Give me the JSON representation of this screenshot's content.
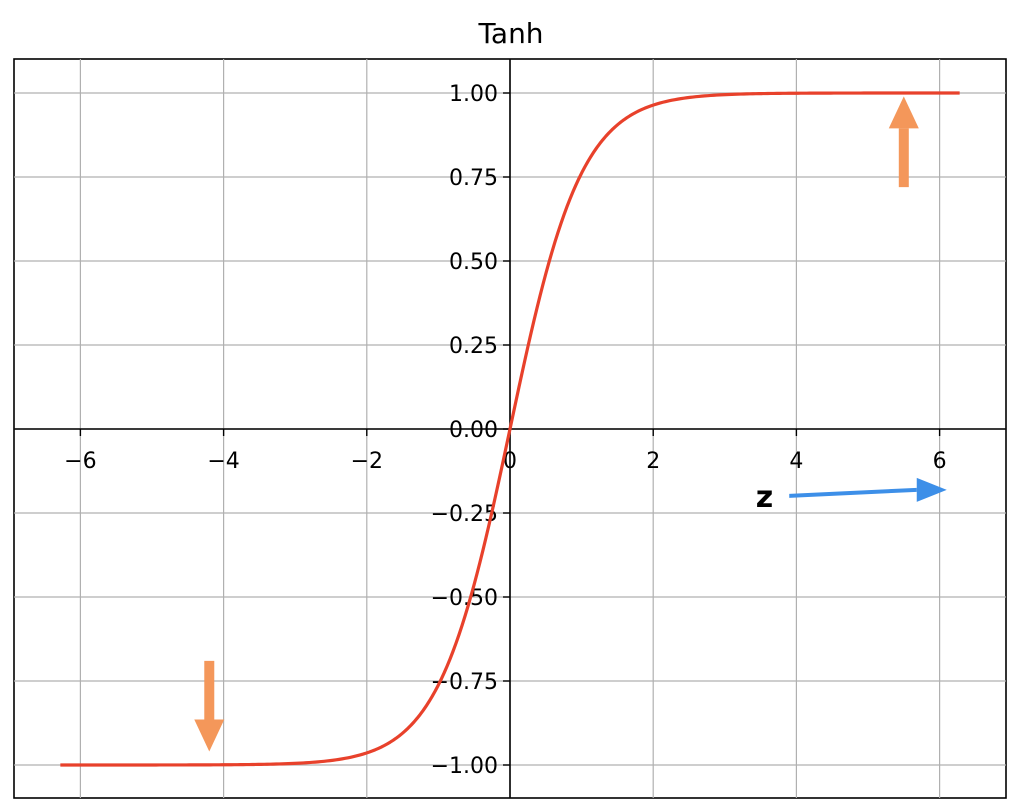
{
  "chart_data": {
    "type": "line",
    "title": "Tanh",
    "xlabel": "",
    "ylabel": "",
    "xlim": [
      -6.9,
      7.0
    ],
    "ylim": [
      -1.1,
      1.1
    ],
    "grid": true,
    "spines": "centered-at-origin",
    "x_ticks": [
      -6,
      -4,
      -2,
      0,
      2,
      4,
      6
    ],
    "x_tick_labels": [
      "−6",
      "−4",
      "−2",
      "0",
      "2",
      "4",
      "6"
    ],
    "y_ticks": [
      1.0,
      0.75,
      0.5,
      0.25,
      0.0,
      -0.25,
      -0.5,
      -0.75,
      -1.0
    ],
    "y_tick_labels": [
      "1.00",
      "0.75",
      "0.50",
      "0.25",
      "0.00",
      "−0.25",
      "−0.50",
      "−0.75",
      "−1.00"
    ],
    "series": [
      {
        "function": "tanh",
        "color": "#e8412b",
        "x": [
          -6.28,
          -5.0,
          -4.0,
          -3.0,
          -2.5,
          -2.0,
          -1.5,
          -1.0,
          -0.75,
          -0.5,
          -0.25,
          0.0,
          0.25,
          0.5,
          0.75,
          1.0,
          1.5,
          2.0,
          2.5,
          3.0,
          4.0,
          5.0,
          6.28
        ],
        "y": [
          -1.0,
          -0.9999,
          -0.9993,
          -0.9951,
          -0.9866,
          -0.964,
          -0.9051,
          -0.7616,
          -0.6351,
          -0.4621,
          -0.2449,
          0.0,
          0.2449,
          0.4621,
          0.6351,
          0.7616,
          0.9051,
          0.964,
          0.9866,
          0.9951,
          0.9993,
          0.9999,
          1.0
        ]
      }
    ],
    "annotations": [
      {
        "name": "upper-saturation-arrow",
        "direction": "up",
        "x": 5.5,
        "y_from": 0.72,
        "y_to": 0.99,
        "color": "#f4975a"
      },
      {
        "name": "lower-saturation-arrow",
        "direction": "down",
        "x": -4.2,
        "y_from": -0.69,
        "y_to": -0.96,
        "color": "#f4975a"
      },
      {
        "name": "z-axis-arrow",
        "label": "z",
        "direction": "right",
        "x_from": 3.9,
        "x_to": 6.1,
        "y": -0.19,
        "color": "#3d8fe8"
      }
    ]
  },
  "colors": {
    "curve": "#e8412b",
    "grid": "#b0b0b0",
    "axes": "#000000",
    "saturation_arrow": "#f4975a",
    "z_arrow": "#3d8fe8"
  }
}
